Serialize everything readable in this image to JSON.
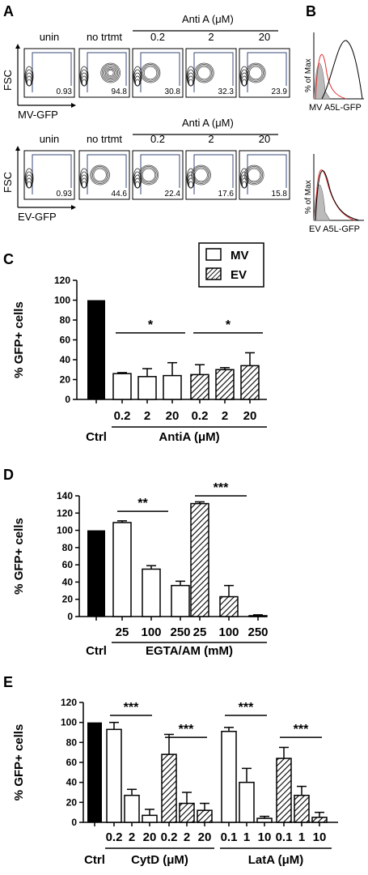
{
  "panel_labels": {
    "A": "A",
    "B": "B",
    "C": "C",
    "D": "D",
    "E": "E"
  },
  "panel_a": {
    "treatment_header": "Anti A (μM)",
    "column_labels": [
      "unin",
      "no trtmt",
      "0.2",
      "2",
      "20"
    ],
    "y_axis": "FSC",
    "rows": [
      {
        "x_axis": "MV-GFP",
        "values": [
          "0.93",
          "94.8",
          "30.8",
          "32.3",
          "23.9"
        ]
      },
      {
        "x_axis": "EV-GFP",
        "values": [
          "0.93",
          "44.6",
          "22.4",
          "17.6",
          "15.8"
        ]
      }
    ]
  },
  "panel_b": {
    "y_axis": "% of Max",
    "histograms": [
      {
        "x_axis": "MV A5L-GFP"
      },
      {
        "x_axis": "EV A5L-GFP"
      }
    ]
  },
  "legend": {
    "mv": "MV",
    "ev": "EV"
  },
  "colors": {
    "ctrl": "#000000",
    "mv": "#ffffff",
    "ev_hatch": "#000000",
    "hist_red": "#e03030",
    "hist_fill": "#bbbbbb"
  },
  "chart_data": [
    {
      "type": "bar",
      "ylabel": "% GFP+ cells",
      "ylim": [
        0,
        120
      ],
      "yticks": [
        0,
        20,
        40,
        60,
        80,
        100,
        120
      ],
      "ctrl_label": "Ctrl",
      "ctrl_value": 100,
      "groups": [
        {
          "label": "AntiA (μM)",
          "series": "MV",
          "categories": [
            "0.2",
            "2",
            "20"
          ],
          "values": [
            26,
            23,
            24
          ],
          "errors": [
            1,
            8,
            13
          ]
        },
        {
          "label": "AntiA (μM)",
          "series": "EV",
          "categories": [
            "0.2",
            "2",
            "20"
          ],
          "values": [
            25,
            30,
            34
          ],
          "errors": [
            10,
            2,
            13
          ]
        }
      ],
      "significance": [
        "*",
        "*"
      ],
      "grid": false
    },
    {
      "type": "bar",
      "ylabel": "% GFP+ cells",
      "ylim": [
        0,
        140
      ],
      "yticks": [
        0,
        20,
        40,
        60,
        80,
        100,
        120,
        140
      ],
      "ctrl_label": "Ctrl",
      "ctrl_value": 100,
      "groups": [
        {
          "label": "EGTA/AM (mM)",
          "series": "MV",
          "categories": [
            "25",
            "100",
            "250"
          ],
          "values": [
            109,
            55,
            36
          ],
          "errors": [
            2,
            4,
            5
          ]
        },
        {
          "label": "EGTA/AM (mM)",
          "series": "EV",
          "categories": [
            "25",
            "100",
            "250"
          ],
          "values": [
            131,
            23,
            1
          ],
          "errors": [
            2,
            13,
            1
          ]
        }
      ],
      "significance": [
        "**",
        "***"
      ],
      "grid": false
    },
    {
      "type": "bar",
      "ylabel": "% GFP+ cells",
      "ylim": [
        0,
        120
      ],
      "yticks": [
        0,
        20,
        40,
        60,
        80,
        100,
        120
      ],
      "ctrl_label": "Ctrl",
      "ctrl_value": 100,
      "groups": [
        {
          "label": "CytD (μM)",
          "series": "MV",
          "categories": [
            "0.2",
            "2",
            "20"
          ],
          "values": [
            93,
            27,
            7
          ],
          "errors": [
            7,
            6,
            6
          ]
        },
        {
          "label": "CytD (μM)",
          "series": "EV",
          "categories": [
            "0.2",
            "2",
            "20"
          ],
          "values": [
            68,
            19,
            12
          ],
          "errors": [
            20,
            11,
            7
          ]
        },
        {
          "label": "LatA (μM)",
          "series": "MV",
          "categories": [
            "0.1",
            "1",
            "10"
          ],
          "values": [
            91,
            40,
            4
          ],
          "errors": [
            4,
            14,
            2
          ]
        },
        {
          "label": "LatA (μM)",
          "series": "EV",
          "categories": [
            "0.1",
            "1",
            "10"
          ],
          "values": [
            64,
            27,
            5
          ],
          "errors": [
            11,
            9,
            5
          ]
        }
      ],
      "significance": [
        "***",
        "***",
        "***",
        "***"
      ],
      "grid": false
    }
  ]
}
